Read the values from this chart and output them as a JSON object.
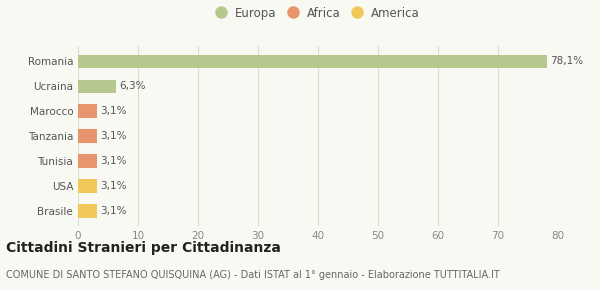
{
  "categories": [
    "Romania",
    "Ucraina",
    "Marocco",
    "Tanzania",
    "Tunisia",
    "USA",
    "Brasile"
  ],
  "values": [
    78.1,
    6.3,
    3.1,
    3.1,
    3.1,
    3.1,
    3.1
  ],
  "colors": [
    "#b5c98e",
    "#b5c98e",
    "#e8956d",
    "#e8956d",
    "#e8956d",
    "#f0c85a",
    "#f0c85a"
  ],
  "labels": [
    "78,1%",
    "6,3%",
    "3,1%",
    "3,1%",
    "3,1%",
    "3,1%",
    "3,1%"
  ],
  "legend_items": [
    {
      "label": "Europa",
      "color": "#b5c98e"
    },
    {
      "label": "Africa",
      "color": "#e8956d"
    },
    {
      "label": "America",
      "color": "#f0c85a"
    }
  ],
  "xlim": [
    0,
    80
  ],
  "xticks": [
    0,
    10,
    20,
    30,
    40,
    50,
    60,
    70,
    80
  ],
  "title": "Cittadini Stranieri per Cittadinanza",
  "subtitle": "COMUNE DI SANTO STEFANO QUISQUINA (AG) - Dati ISTAT al 1° gennaio - Elaborazione TUTTITALIA.IT",
  "background_color": "#f9f9f4",
  "grid_color": "#ddddcc",
  "title_fontsize": 10,
  "subtitle_fontsize": 7,
  "bar_label_fontsize": 7.5,
  "tick_fontsize": 7.5,
  "legend_fontsize": 8.5
}
